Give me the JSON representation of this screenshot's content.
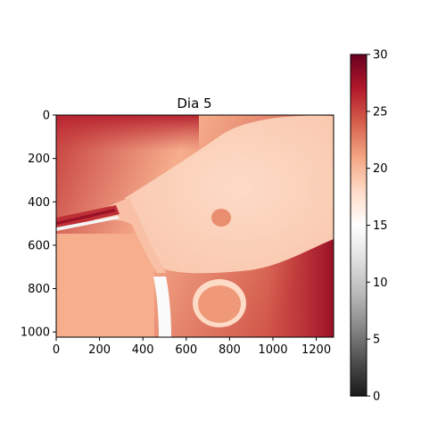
{
  "chart_data": {
    "type": "heatmap",
    "title": "Dia 5",
    "xlabel": "",
    "ylabel": "",
    "x_extent": [
      0,
      1280
    ],
    "y_extent": [
      0,
      1024
    ],
    "y_inverted": true,
    "x_ticks": [
      0,
      200,
      400,
      600,
      800,
      1000,
      1200
    ],
    "y_ticks": [
      0,
      200,
      400,
      600,
      800,
      1000
    ],
    "colorbar": {
      "colormap": "RdGy_r",
      "range": [
        0,
        30
      ],
      "ticks": [
        0,
        5,
        10,
        15,
        20,
        25,
        30
      ],
      "colors": [
        "#1a1a1a",
        "#4d4d4d",
        "#878787",
        "#bababa",
        "#e0e0e0",
        "#ffffff",
        "#fddbc7",
        "#f4a582",
        "#d6604d",
        "#b2182b",
        "#67001f"
      ]
    },
    "regions": [
      {
        "name": "background-top-left",
        "value": 25.5
      },
      {
        "name": "background-lower-left",
        "value": 20.5
      },
      {
        "name": "background-right-edge",
        "value": 26.5
      },
      {
        "name": "body-mass",
        "value": 19.0
      },
      {
        "name": "neck",
        "value": 19.5
      },
      {
        "name": "body-center",
        "value": 18.0
      },
      {
        "name": "spot",
        "value": 22.0
      },
      {
        "name": "lower-ring",
        "value": 18.0
      },
      {
        "name": "lower-ring-inner",
        "value": 21.5
      },
      {
        "name": "tube",
        "value": 26.0
      },
      {
        "name": "tube-stripe",
        "value": 28.0
      },
      {
        "name": "tube-light-stripe",
        "value": 14.0
      },
      {
        "name": "bottom-streak",
        "value": 14.5
      }
    ]
  }
}
